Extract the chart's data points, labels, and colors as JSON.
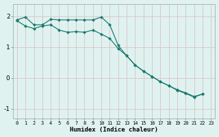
{
  "xlabel": "Humidex (Indice chaleur)",
  "xlim": [
    -0.5,
    23.5
  ],
  "ylim": [
    -1.3,
    2.4
  ],
  "yticks": [
    -1,
    0,
    1,
    2
  ],
  "xticks": [
    0,
    1,
    2,
    3,
    4,
    5,
    6,
    7,
    8,
    9,
    10,
    11,
    12,
    13,
    14,
    15,
    16,
    17,
    18,
    19,
    20,
    21,
    22,
    23
  ],
  "bg_color": "#dff2f0",
  "grid_color": "#d9c8c8",
  "line_color": "#1a7a6e",
  "upper_x": [
    0,
    1,
    2,
    3,
    4,
    5,
    6,
    7,
    8,
    9,
    10,
    11,
    12,
    13,
    14,
    15,
    16,
    17,
    18,
    19,
    20,
    21,
    22
  ],
  "upper_y": [
    1.88,
    1.97,
    1.72,
    1.72,
    1.9,
    1.88,
    1.88,
    1.88,
    1.88,
    1.88,
    1.97,
    1.72,
    1.05,
    0.72,
    0.42,
    0.22,
    0.05,
    -0.12,
    -0.25,
    -0.38,
    -0.48,
    -0.6,
    -0.52
  ],
  "lower_x": [
    0,
    1,
    2,
    3,
    4,
    5,
    6,
    7,
    8,
    9,
    10,
    11,
    12,
    13,
    14,
    15,
    16,
    17,
    18,
    19,
    20,
    21,
    22
  ],
  "lower_y": [
    1.85,
    1.68,
    1.6,
    1.68,
    1.72,
    1.55,
    1.48,
    1.5,
    1.48,
    1.55,
    1.42,
    1.28,
    0.95,
    0.72,
    0.42,
    0.22,
    0.05,
    -0.12,
    -0.25,
    -0.4,
    -0.5,
    -0.62,
    -0.52
  ]
}
